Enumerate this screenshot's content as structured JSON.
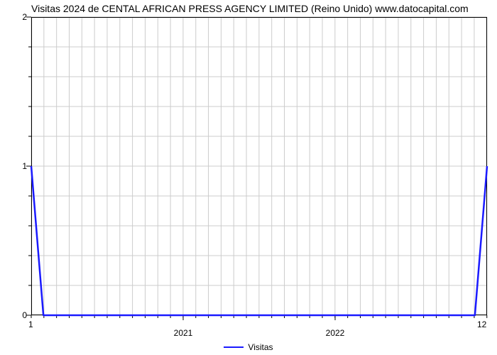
{
  "chart": {
    "type": "line",
    "title": "Visitas 2024 de CENTAL AFRICAN PRESS AGENCY LIMITED (Reino Unido) www.datocapital.com",
    "title_fontsize": 14,
    "title_color": "#000000",
    "background_color": "#ffffff",
    "plot_border_color": "#000000",
    "grid_color": "#cccccc",
    "minor_tick_color": "#000000",
    "x": {
      "min": 2020,
      "max": 2023,
      "major_ticks": [
        2021,
        2022
      ],
      "minor_tick_step": 0.0833,
      "label_start": "1",
      "label_end": "12",
      "major_labels": [
        "2021",
        "2022"
      ]
    },
    "y": {
      "min": 0,
      "max": 2,
      "major_ticks": [
        0,
        1,
        2
      ],
      "minor_tick_step": 0.2
    },
    "series": [
      {
        "name": "Visitas",
        "color": "#1a1aff",
        "line_width": 2.5,
        "points": [
          [
            2020.0,
            1.0
          ],
          [
            2020.08,
            0.0
          ],
          [
            2022.92,
            0.0
          ],
          [
            2023.0,
            1.0
          ]
        ]
      }
    ],
    "legend": {
      "position": "bottom-center",
      "fontsize": 12
    }
  }
}
